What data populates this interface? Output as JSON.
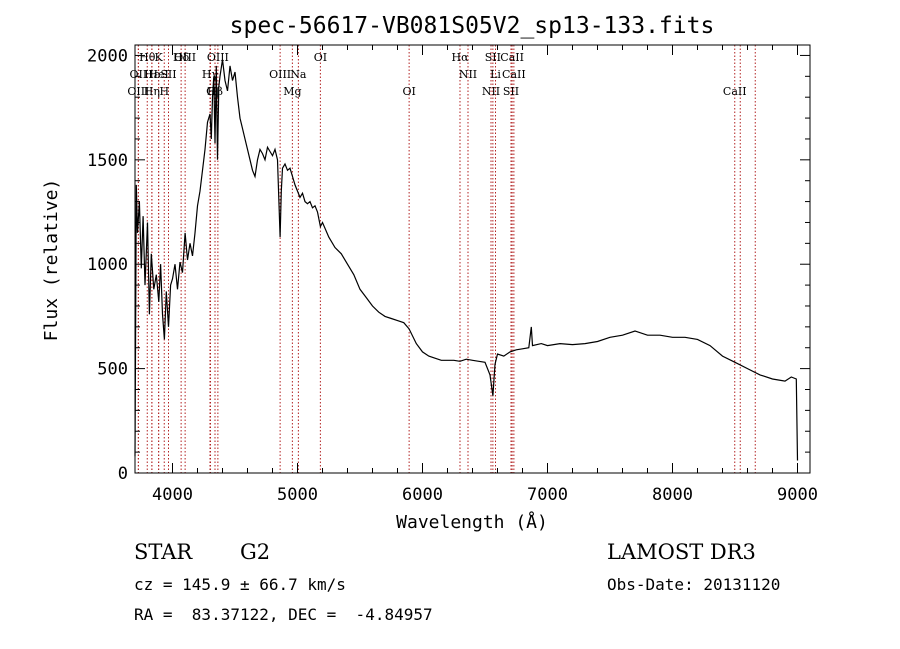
{
  "chart_data": {
    "type": "line",
    "title": "spec-56617-VB081S05V2_sp13-133.fits",
    "xlabel": "Wavelength (Å)",
    "ylabel": "Flux (relative)",
    "xlim": [
      3700,
      9100
    ],
    "ylim": [
      0,
      2050
    ],
    "xticks": [
      4000,
      5000,
      6000,
      7000,
      8000,
      9000
    ],
    "yticks": [
      0,
      500,
      1000,
      1500,
      2000
    ],
    "grid": false,
    "line_color": "#000000",
    "marker_color": "#b22222",
    "series": [
      {
        "name": "spectrum",
        "points": [
          [
            3700,
            80
          ],
          [
            3710,
            1380
          ],
          [
            3720,
            1150
          ],
          [
            3735,
            1300
          ],
          [
            3750,
            980
          ],
          [
            3765,
            1230
          ],
          [
            3780,
            900
          ],
          [
            3800,
            1200
          ],
          [
            3815,
            760
          ],
          [
            3830,
            1050
          ],
          [
            3850,
            880
          ],
          [
            3870,
            950
          ],
          [
            3890,
            820
          ],
          [
            3905,
            1000
          ],
          [
            3920,
            760
          ],
          [
            3935,
            640
          ],
          [
            3950,
            870
          ],
          [
            3968,
            700
          ],
          [
            3985,
            900
          ],
          [
            4000,
            930
          ],
          [
            4020,
            1000
          ],
          [
            4040,
            880
          ],
          [
            4060,
            1010
          ],
          [
            4080,
            960
          ],
          [
            4101,
            1150
          ],
          [
            4120,
            1020
          ],
          [
            4140,
            1100
          ],
          [
            4160,
            1040
          ],
          [
            4180,
            1150
          ],
          [
            4200,
            1280
          ],
          [
            4220,
            1350
          ],
          [
            4240,
            1450
          ],
          [
            4260,
            1550
          ],
          [
            4280,
            1680
          ],
          [
            4300,
            1720
          ],
          [
            4310,
            1600
          ],
          [
            4320,
            1800
          ],
          [
            4330,
            1900
          ],
          [
            4340,
            1580
          ],
          [
            4350,
            1950
          ],
          [
            4360,
            1500
          ],
          [
            4370,
            1850
          ],
          [
            4380,
            1900
          ],
          [
            4400,
            1980
          ],
          [
            4420,
            1880
          ],
          [
            4440,
            1830
          ],
          [
            4460,
            1950
          ],
          [
            4480,
            1880
          ],
          [
            4500,
            1920
          ],
          [
            4520,
            1800
          ],
          [
            4540,
            1700
          ],
          [
            4560,
            1650
          ],
          [
            4580,
            1600
          ],
          [
            4600,
            1550
          ],
          [
            4620,
            1500
          ],
          [
            4640,
            1450
          ],
          [
            4660,
            1420
          ],
          [
            4680,
            1500
          ],
          [
            4700,
            1550
          ],
          [
            4720,
            1530
          ],
          [
            4740,
            1500
          ],
          [
            4760,
            1560
          ],
          [
            4780,
            1540
          ],
          [
            4800,
            1520
          ],
          [
            4820,
            1550
          ],
          [
            4840,
            1500
          ],
          [
            4861,
            1130
          ],
          [
            4870,
            1350
          ],
          [
            4880,
            1460
          ],
          [
            4900,
            1480
          ],
          [
            4920,
            1450
          ],
          [
            4940,
            1460
          ],
          [
            4960,
            1420
          ],
          [
            4980,
            1380
          ],
          [
            5000,
            1350
          ],
          [
            5020,
            1320
          ],
          [
            5040,
            1340
          ],
          [
            5060,
            1300
          ],
          [
            5080,
            1290
          ],
          [
            5100,
            1300
          ],
          [
            5120,
            1270
          ],
          [
            5140,
            1280
          ],
          [
            5160,
            1250
          ],
          [
            5183,
            1180
          ],
          [
            5200,
            1200
          ],
          [
            5250,
            1130
          ],
          [
            5300,
            1080
          ],
          [
            5350,
            1050
          ],
          [
            5400,
            1000
          ],
          [
            5450,
            950
          ],
          [
            5500,
            880
          ],
          [
            5550,
            840
          ],
          [
            5600,
            800
          ],
          [
            5650,
            770
          ],
          [
            5700,
            750
          ],
          [
            5750,
            740
          ],
          [
            5800,
            730
          ],
          [
            5850,
            720
          ],
          [
            5893,
            690
          ],
          [
            5950,
            620
          ],
          [
            6000,
            580
          ],
          [
            6050,
            560
          ],
          [
            6100,
            550
          ],
          [
            6150,
            540
          ],
          [
            6200,
            540
          ],
          [
            6250,
            540
          ],
          [
            6300,
            535
          ],
          [
            6350,
            545
          ],
          [
            6400,
            540
          ],
          [
            6450,
            535
          ],
          [
            6500,
            530
          ],
          [
            6540,
            470
          ],
          [
            6563,
            370
          ],
          [
            6580,
            520
          ],
          [
            6600,
            570
          ],
          [
            6650,
            560
          ],
          [
            6700,
            580
          ],
          [
            6750,
            590
          ],
          [
            6800,
            595
          ],
          [
            6850,
            600
          ],
          [
            6870,
            700
          ],
          [
            6880,
            610
          ],
          [
            6950,
            620
          ],
          [
            7000,
            610
          ],
          [
            7100,
            620
          ],
          [
            7200,
            615
          ],
          [
            7300,
            620
          ],
          [
            7400,
            630
          ],
          [
            7500,
            650
          ],
          [
            7600,
            660
          ],
          [
            7700,
            680
          ],
          [
            7800,
            660
          ],
          [
            7900,
            660
          ],
          [
            8000,
            650
          ],
          [
            8100,
            650
          ],
          [
            8200,
            640
          ],
          [
            8300,
            610
          ],
          [
            8400,
            560
          ],
          [
            8500,
            530
          ],
          [
            8600,
            500
          ],
          [
            8700,
            470
          ],
          [
            8800,
            450
          ],
          [
            8900,
            440
          ],
          [
            8950,
            460
          ],
          [
            8990,
            450
          ],
          [
            9000,
            60
          ]
        ]
      }
    ],
    "line_markers": [
      {
        "label": "Hθ",
        "wave": 3798,
        "row": 0
      },
      {
        "label": "OII",
        "wave": 3727,
        "row": 1
      },
      {
        "label": "OIII",
        "wave": 3727,
        "row": 2
      },
      {
        "label": "Hε",
        "wave": 3835,
        "row": 1
      },
      {
        "label": "Hη",
        "wave": 3835,
        "row": 2
      },
      {
        "label": "K",
        "wave": 3889,
        "row": 0
      },
      {
        "label": "HeI",
        "wave": 3889,
        "row": 1
      },
      {
        "label": "H",
        "wave": 3934,
        "row": 2
      },
      {
        "label": "SII",
        "wave": 3968,
        "row": 1
      },
      {
        "label": "Hδ",
        "wave": 4069,
        "row": 0
      },
      {
        "label": "OIII",
        "wave": 4101,
        "row": 0
      },
      {
        "label": "Hγ",
        "wave": 4300,
        "row": 1
      },
      {
        "label": "G",
        "wave": 4304,
        "row": 2
      },
      {
        "label": "Hβ",
        "wave": 4340,
        "row": 2
      },
      {
        "label": "OIII",
        "wave": 4363,
        "row": 0
      },
      {
        "label": "OIII",
        "wave": 4861,
        "row": 1
      },
      {
        "label": "Mg",
        "wave": 4959,
        "row": 2
      },
      {
        "label": "Na",
        "wave": 5007,
        "row": 1
      },
      {
        "label": "OI",
        "wave": 5183,
        "row": 0
      },
      {
        "label": "OI",
        "wave": 5893,
        "row": 2
      },
      {
        "label": "Hα",
        "wave": 6300,
        "row": 0
      },
      {
        "label": "NII",
        "wave": 6364,
        "row": 1
      },
      {
        "label": "NII",
        "wave": 6548,
        "row": 2
      },
      {
        "label": "SII",
        "wave": 6563,
        "row": 0
      },
      {
        "label": "Li",
        "wave": 6584,
        "row": 1
      },
      {
        "label": "SII",
        "wave": 6708,
        "row": 2
      },
      {
        "label": "CaII",
        "wave": 6717,
        "row": 0
      },
      {
        "label": "CaII",
        "wave": 6731,
        "row": 1
      },
      {
        "label": "CaII",
        "wave": 8498,
        "row": 2
      },
      {
        "label": "",
        "wave": 8542,
        "row": 0
      },
      {
        "label": "",
        "wave": 8662,
        "row": 0
      }
    ]
  },
  "info": {
    "object_class": "STAR",
    "subclass": "G2",
    "survey": "LAMOST DR3",
    "redshift": "cz = 145.9 ± 66.7 km/s",
    "obs_date": "Obs-Date: 20131120",
    "coords": "RA =  83.37122, DEC =  -4.84957"
  }
}
